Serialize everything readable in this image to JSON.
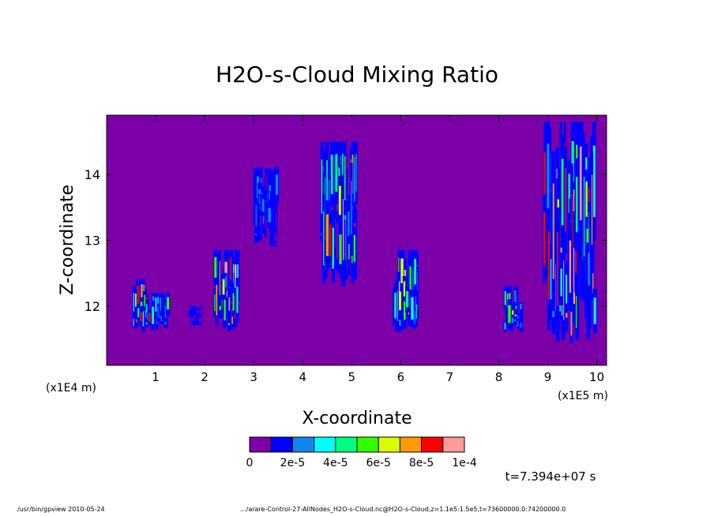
{
  "chart_data": {
    "type": "heatmap",
    "title": "H2O-s-Cloud Mixing Ratio",
    "xlabel": "X-coordinate",
    "ylabel": "Z-coordinate",
    "x_unit_left": "(x1E4 m)",
    "x_unit_right": "(x1E5 m)",
    "xlim": [
      0.0,
      10.2
    ],
    "ylim": [
      11.1,
      14.9
    ],
    "xticks": [
      1,
      2,
      3,
      4,
      5,
      6,
      7,
      8,
      9,
      10
    ],
    "yticks": [
      12,
      13,
      14
    ],
    "background_value": 0,
    "grid": false,
    "colorbar": {
      "levels": [
        0,
        1e-05,
        2e-05,
        3e-05,
        4e-05,
        5e-05,
        6e-05,
        7e-05,
        8e-05,
        9e-05,
        0.0001
      ],
      "colors": [
        "#7b00a8",
        "#0000ff",
        "#0f87f0",
        "#00ffff",
        "#00ff80",
        "#33ff00",
        "#d8ff00",
        "#ff9a00",
        "#ff0000",
        "#ff9a9a"
      ],
      "tick_labels": [
        "0",
        "2e-5",
        "4e-5",
        "6e-5",
        "8e-5",
        "1e-4"
      ]
    },
    "clouds": [
      {
        "x": 0.7,
        "zmin": 11.6,
        "zmax": 12.4,
        "peak": 9e-05
      },
      {
        "x": 1.1,
        "zmin": 11.6,
        "zmax": 12.2,
        "peak": 6e-05
      },
      {
        "x": 1.8,
        "zmin": 11.7,
        "zmax": 12.0,
        "peak": 2e-05
      },
      {
        "x": 2.45,
        "zmin": 11.6,
        "zmax": 12.85,
        "peak": 0.0001
      },
      {
        "x": 3.25,
        "zmin": 12.9,
        "zmax": 14.1,
        "peak": 3e-05
      },
      {
        "x": 4.75,
        "zmin": 12.3,
        "zmax": 14.5,
        "peak": 9e-05
      },
      {
        "x": 6.1,
        "zmin": 11.6,
        "zmax": 12.85,
        "peak": 8e-05
      },
      {
        "x": 8.3,
        "zmin": 11.6,
        "zmax": 12.3,
        "peak": 7e-05
      },
      {
        "x": 9.45,
        "zmin": 11.4,
        "zmax": 14.8,
        "peak": 0.0001
      }
    ],
    "time_label": "t=7.394e+07 s"
  },
  "colors": {
    "background": "#7b00a8",
    "frame": "#000000"
  },
  "footer": {
    "left": "/usr/bin/gpview   2010-05-24",
    "right": ".../arare-Control-27-AllNodes_H2O-s-Cloud.nc@H2O-s-Cloud,z=1.1e5:1.5e5,t=73600000.0:74200000.0"
  }
}
